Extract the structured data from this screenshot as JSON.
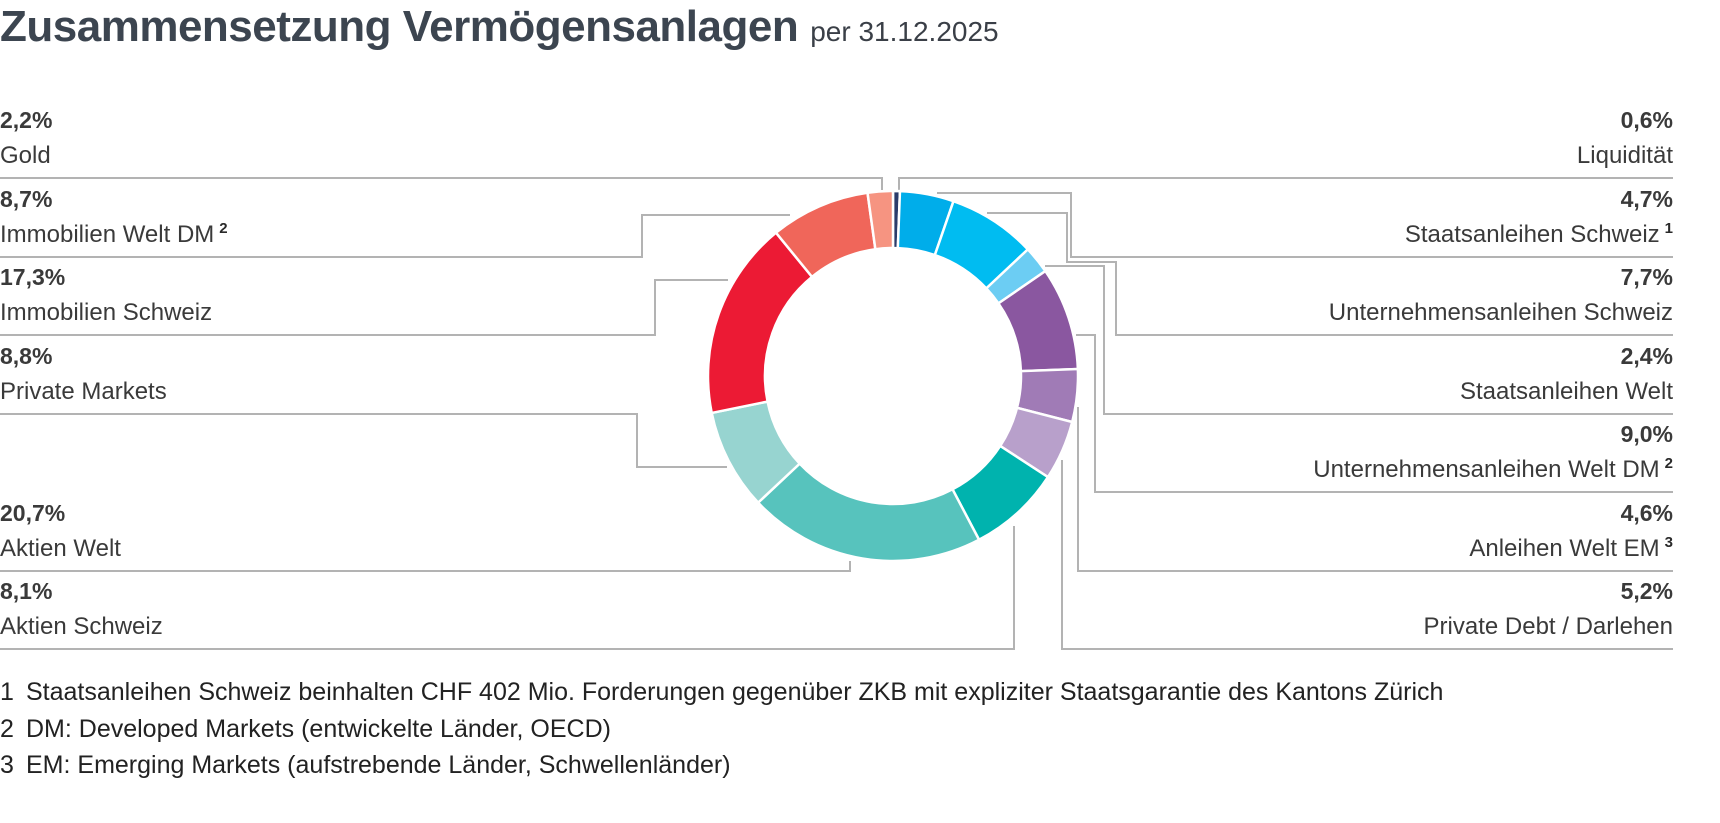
{
  "title": "Zusammensetzung Vermögensanlagen",
  "subtitle": "per 31.12.2025",
  "chart_data": {
    "type": "pie",
    "variant": "donut",
    "title": "Zusammensetzung Vermögensanlagen",
    "subtitle": "per 31.12.2025",
    "unit": "%",
    "slices": [
      {
        "label": "Liquidität",
        "value": 0.6,
        "display": "0,6%",
        "sup": "",
        "color": "#2b3c6a",
        "side": "right"
      },
      {
        "label": "Staatsanleihen Schweiz",
        "value": 4.7,
        "display": "4,7%",
        "sup": "1",
        "color": "#00adea",
        "side": "right"
      },
      {
        "label": "Unternehmensanleihen Schweiz",
        "value": 7.7,
        "display": "7,7%",
        "sup": "",
        "color": "#00bcf1",
        "side": "right"
      },
      {
        "label": "Staatsanleihen Welt",
        "value": 2.4,
        "display": "2,4%",
        "sup": "",
        "color": "#6ccdf3",
        "side": "right"
      },
      {
        "label": "Unternehmensanleihen Welt DM",
        "value": 9.0,
        "display": "9,0%",
        "sup": "2",
        "color": "#8a57a0",
        "side": "right"
      },
      {
        "label": "Anleihen Welt EM",
        "value": 4.6,
        "display": "4,6%",
        "sup": "3",
        "color": "#a07bb6",
        "side": "right"
      },
      {
        "label": "Private Debt / Darlehen",
        "value": 5.2,
        "display": "5,2%",
        "sup": "",
        "color": "#b8a0cb",
        "side": "right"
      },
      {
        "label": "Aktien Schweiz",
        "value": 8.1,
        "display": "8,1%",
        "sup": "",
        "color": "#00b3ae",
        "side": "left"
      },
      {
        "label": "Aktien Welt",
        "value": 20.7,
        "display": "20,7%",
        "sup": "",
        "color": "#57c3bd",
        "side": "left"
      },
      {
        "label": "Private Markets",
        "value": 8.8,
        "display": "8,8%",
        "sup": "",
        "color": "#97d4d0",
        "side": "left"
      },
      {
        "label": "Immobilien Schweiz",
        "value": 17.3,
        "display": "17,3%",
        "sup": "",
        "color": "#ec1a34",
        "side": "left"
      },
      {
        "label": "Immobilien Welt DM",
        "value": 8.7,
        "display": "8,7%",
        "sup": "2",
        "color": "#f0665a",
        "side": "left"
      },
      {
        "label": "Gold",
        "value": 2.2,
        "display": "2,2%",
        "sup": "",
        "color": "#f69481",
        "side": "left"
      }
    ],
    "legend_left_order": [
      "Gold",
      "Immobilien Welt DM",
      "Immobilien Schweiz",
      "Private Markets",
      "Aktien Welt",
      "Aktien Schweiz"
    ],
    "legend_right_order": [
      "Liquidität",
      "Staatsanleihen Schweiz",
      "Unternehmensanleihen Schweiz",
      "Staatsanleihen Welt",
      "Unternehmensanleihen Welt DM",
      "Anleihen Welt EM",
      "Private Debt / Darlehen"
    ]
  },
  "footnotes": [
    {
      "num": "1",
      "text": "Staatsanleihen Schweiz beinhalten CHF 402 Mio. Forderungen gegenüber ZKB mit expliziter Staatsgarantie des Kantons Zürich"
    },
    {
      "num": "2",
      "text": "DM: Developed Markets (entwickelte Länder, OECD)"
    },
    {
      "num": "3",
      "text": "EM: Emerging Markets (aufstrebende Länder, Schwellenländer)"
    }
  ]
}
